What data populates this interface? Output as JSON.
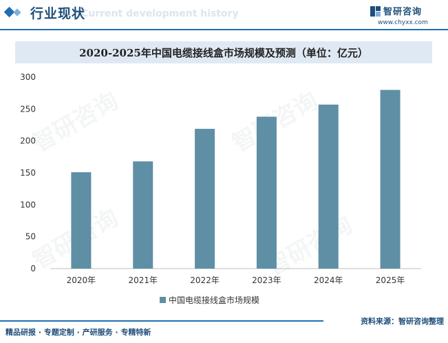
{
  "header": {
    "title": "行业现状",
    "subtitle": "Current development history"
  },
  "logo": {
    "name": "智研咨询",
    "url": "www.chyxx.com"
  },
  "watermark": {
    "text": "智研咨询"
  },
  "chart_data": {
    "type": "bar",
    "title": "2020-2025年中国电缆接线盒市场规模及预测（单位：亿元）",
    "categories": [
      "2020年",
      "2021年",
      "2022年",
      "2023年",
      "2024年",
      "2025年"
    ],
    "series": [
      {
        "name": "中国电缆接线盒市场规模",
        "values": [
          151,
          168,
          219,
          238,
          257,
          280
        ]
      }
    ],
    "ylim": [
      0,
      300
    ],
    "yticks": [
      0,
      50,
      100,
      150,
      200,
      250,
      300
    ],
    "xlabel": "",
    "ylabel": "",
    "legend_position": "bottom",
    "bar_color": "#5e8fa5"
  },
  "footer": {
    "tagline": "精品研报 · 专题定制 · 产研服务 · 专精特新",
    "source": "资料来源：智研咨询整理"
  }
}
